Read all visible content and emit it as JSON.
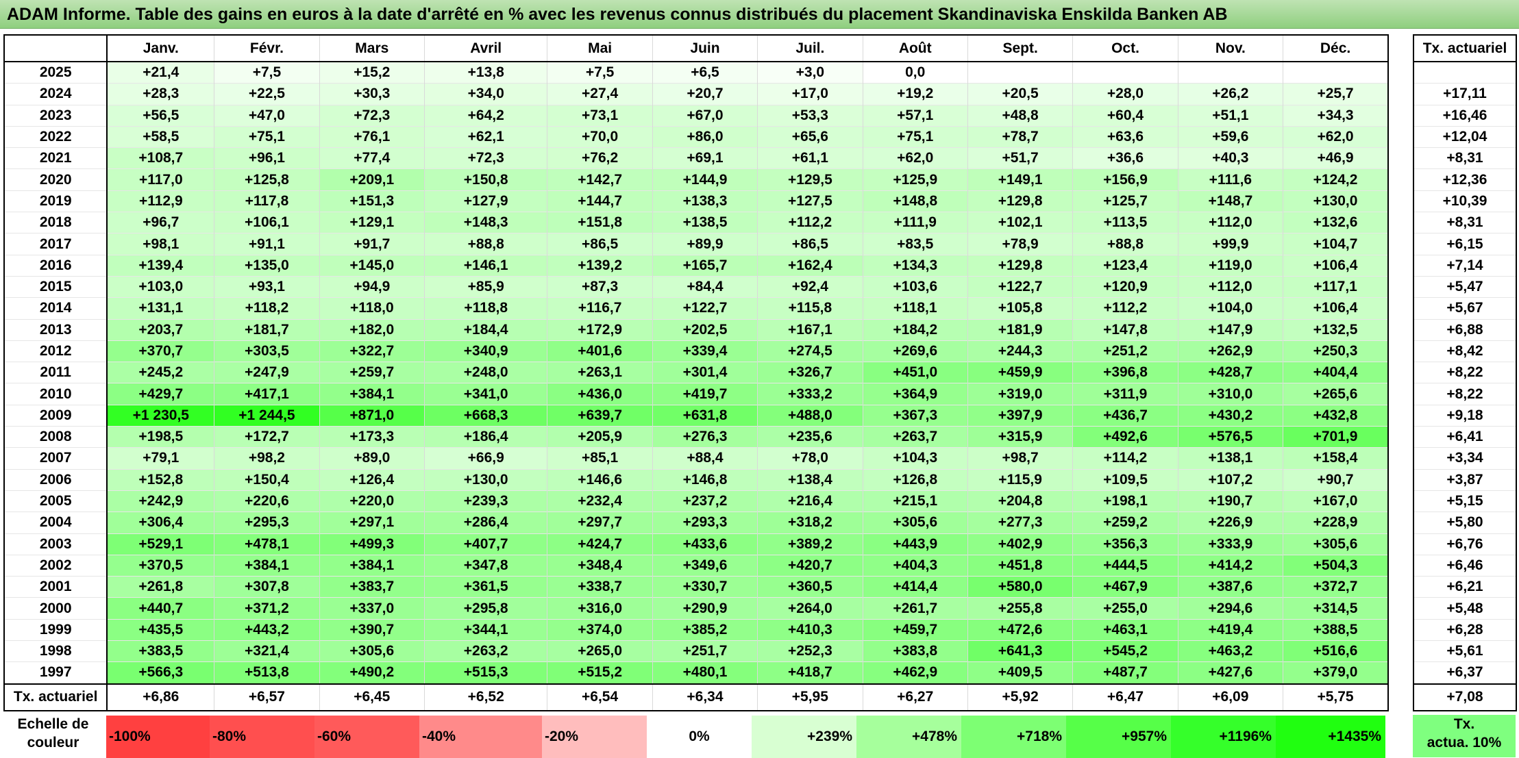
{
  "title": "ADAM Informe. Table des gains en euros à la date d'arrêté en % avec les revenus connus distribués du placement Skandinaviska Enskilda Banken AB",
  "months": [
    "Janv.",
    "Févr.",
    "Mars",
    "Avril",
    "Mai",
    "Juin",
    "Juil.",
    "Août",
    "Sept.",
    "Oct.",
    "Nov.",
    "Déc."
  ],
  "rate_header": "Tx. actuariel",
  "footer_label": "Tx. actuariel",
  "rows": [
    {
      "year": "2025",
      "values": [
        "+21,4",
        "+7,5",
        "+15,2",
        "+13,8",
        "+7,5",
        "+6,5",
        "+3,0",
        "0,0",
        "",
        "",
        "",
        ""
      ],
      "rate": ""
    },
    {
      "year": "2024",
      "values": [
        "+28,3",
        "+22,5",
        "+30,3",
        "+34,0",
        "+27,4",
        "+20,7",
        "+17,0",
        "+19,2",
        "+20,5",
        "+28,0",
        "+26,2",
        "+25,7"
      ],
      "rate": "+17,11"
    },
    {
      "year": "2023",
      "values": [
        "+56,5",
        "+47,0",
        "+72,3",
        "+64,2",
        "+73,1",
        "+67,0",
        "+53,3",
        "+57,1",
        "+48,8",
        "+60,4",
        "+51,1",
        "+34,3"
      ],
      "rate": "+16,46"
    },
    {
      "year": "2022",
      "values": [
        "+58,5",
        "+75,1",
        "+76,1",
        "+62,1",
        "+70,0",
        "+86,0",
        "+65,6",
        "+75,1",
        "+78,7",
        "+63,6",
        "+59,6",
        "+62,0"
      ],
      "rate": "+12,04"
    },
    {
      "year": "2021",
      "values": [
        "+108,7",
        "+96,1",
        "+77,4",
        "+72,3",
        "+76,2",
        "+69,1",
        "+61,1",
        "+62,0",
        "+51,7",
        "+36,6",
        "+40,3",
        "+46,9"
      ],
      "rate": "+8,31"
    },
    {
      "year": "2020",
      "values": [
        "+117,0",
        "+125,8",
        "+209,1",
        "+150,8",
        "+142,7",
        "+144,9",
        "+129,5",
        "+125,9",
        "+149,1",
        "+156,9",
        "+111,6",
        "+124,2"
      ],
      "rate": "+12,36"
    },
    {
      "year": "2019",
      "values": [
        "+112,9",
        "+117,8",
        "+151,3",
        "+127,9",
        "+144,7",
        "+138,3",
        "+127,5",
        "+148,8",
        "+129,8",
        "+125,7",
        "+148,7",
        "+130,0"
      ],
      "rate": "+10,39"
    },
    {
      "year": "2018",
      "values": [
        "+96,7",
        "+106,1",
        "+129,1",
        "+148,3",
        "+151,8",
        "+138,5",
        "+112,2",
        "+111,9",
        "+102,1",
        "+113,5",
        "+112,0",
        "+132,6"
      ],
      "rate": "+8,31"
    },
    {
      "year": "2017",
      "values": [
        "+98,1",
        "+91,1",
        "+91,7",
        "+88,8",
        "+86,5",
        "+89,9",
        "+86,5",
        "+83,5",
        "+78,9",
        "+88,8",
        "+99,9",
        "+104,7"
      ],
      "rate": "+6,15"
    },
    {
      "year": "2016",
      "values": [
        "+139,4",
        "+135,0",
        "+145,0",
        "+146,1",
        "+139,2",
        "+165,7",
        "+162,4",
        "+134,3",
        "+129,8",
        "+123,4",
        "+119,0",
        "+106,4"
      ],
      "rate": "+7,14"
    },
    {
      "year": "2015",
      "values": [
        "+103,0",
        "+93,1",
        "+94,9",
        "+85,9",
        "+87,3",
        "+84,4",
        "+92,4",
        "+103,6",
        "+122,7",
        "+120,9",
        "+112,0",
        "+117,1"
      ],
      "rate": "+5,47"
    },
    {
      "year": "2014",
      "values": [
        "+131,1",
        "+118,2",
        "+118,0",
        "+118,8",
        "+116,7",
        "+122,7",
        "+115,8",
        "+118,1",
        "+105,8",
        "+112,2",
        "+104,0",
        "+106,4"
      ],
      "rate": "+5,67"
    },
    {
      "year": "2013",
      "values": [
        "+203,7",
        "+181,7",
        "+182,0",
        "+184,4",
        "+172,9",
        "+202,5",
        "+167,1",
        "+184,2",
        "+181,9",
        "+147,8",
        "+147,9",
        "+132,5"
      ],
      "rate": "+6,88"
    },
    {
      "year": "2012",
      "values": [
        "+370,7",
        "+303,5",
        "+322,7",
        "+340,9",
        "+401,6",
        "+339,4",
        "+274,5",
        "+269,6",
        "+244,3",
        "+251,2",
        "+262,9",
        "+250,3"
      ],
      "rate": "+8,42"
    },
    {
      "year": "2011",
      "values": [
        "+245,2",
        "+247,9",
        "+259,7",
        "+248,0",
        "+263,1",
        "+301,4",
        "+326,7",
        "+451,0",
        "+459,9",
        "+396,8",
        "+428,7",
        "+404,4"
      ],
      "rate": "+8,22"
    },
    {
      "year": "2010",
      "values": [
        "+429,7",
        "+417,1",
        "+384,1",
        "+341,0",
        "+436,0",
        "+419,7",
        "+333,2",
        "+364,9",
        "+319,0",
        "+311,9",
        "+310,0",
        "+265,6"
      ],
      "rate": "+8,22"
    },
    {
      "year": "2009",
      "values": [
        "+1 230,5",
        "+1 244,5",
        "+871,0",
        "+668,3",
        "+639,7",
        "+631,8",
        "+488,0",
        "+367,3",
        "+397,9",
        "+436,7",
        "+430,2",
        "+432,8"
      ],
      "rate": "+9,18"
    },
    {
      "year": "2008",
      "values": [
        "+198,5",
        "+172,7",
        "+173,3",
        "+186,4",
        "+205,9",
        "+276,3",
        "+235,6",
        "+263,7",
        "+315,9",
        "+492,6",
        "+576,5",
        "+701,9"
      ],
      "rate": "+6,41"
    },
    {
      "year": "2007",
      "values": [
        "+79,1",
        "+98,2",
        "+89,0",
        "+66,9",
        "+85,1",
        "+88,4",
        "+78,0",
        "+104,3",
        "+98,7",
        "+114,2",
        "+138,1",
        "+158,4"
      ],
      "rate": "+3,34"
    },
    {
      "year": "2006",
      "values": [
        "+152,8",
        "+150,4",
        "+126,4",
        "+130,0",
        "+146,6",
        "+146,8",
        "+138,4",
        "+126,8",
        "+115,9",
        "+109,5",
        "+107,2",
        "+90,7"
      ],
      "rate": "+3,87"
    },
    {
      "year": "2005",
      "values": [
        "+242,9",
        "+220,6",
        "+220,0",
        "+239,3",
        "+232,4",
        "+237,2",
        "+216,4",
        "+215,1",
        "+204,8",
        "+198,1",
        "+190,7",
        "+167,0"
      ],
      "rate": "+5,15"
    },
    {
      "year": "2004",
      "values": [
        "+306,4",
        "+295,3",
        "+297,1",
        "+286,4",
        "+297,7",
        "+293,3",
        "+318,2",
        "+305,6",
        "+277,3",
        "+259,2",
        "+226,9",
        "+228,9"
      ],
      "rate": "+5,80"
    },
    {
      "year": "2003",
      "values": [
        "+529,1",
        "+478,1",
        "+499,3",
        "+407,7",
        "+424,7",
        "+433,6",
        "+389,2",
        "+443,9",
        "+402,9",
        "+356,3",
        "+333,9",
        "+305,6"
      ],
      "rate": "+6,76"
    },
    {
      "year": "2002",
      "values": [
        "+370,5",
        "+384,1",
        "+384,1",
        "+347,8",
        "+348,4",
        "+349,6",
        "+420,7",
        "+404,3",
        "+451,8",
        "+444,5",
        "+414,2",
        "+504,3"
      ],
      "rate": "+6,46"
    },
    {
      "year": "2001",
      "values": [
        "+261,8",
        "+307,8",
        "+383,7",
        "+361,5",
        "+338,7",
        "+330,7",
        "+360,5",
        "+414,4",
        "+580,0",
        "+467,9",
        "+387,6",
        "+372,7"
      ],
      "rate": "+6,21"
    },
    {
      "year": "2000",
      "values": [
        "+440,7",
        "+371,2",
        "+337,0",
        "+295,8",
        "+316,0",
        "+290,9",
        "+264,0",
        "+261,7",
        "+255,8",
        "+255,0",
        "+294,6",
        "+314,5"
      ],
      "rate": "+5,48"
    },
    {
      "year": "1999",
      "values": [
        "+435,5",
        "+443,2",
        "+390,7",
        "+344,1",
        "+374,0",
        "+385,2",
        "+410,3",
        "+459,7",
        "+472,6",
        "+463,1",
        "+419,4",
        "+388,5"
      ],
      "rate": "+6,28"
    },
    {
      "year": "1998",
      "values": [
        "+383,5",
        "+321,4",
        "+305,6",
        "+263,2",
        "+265,0",
        "+251,7",
        "+252,3",
        "+383,8",
        "+641,3",
        "+545,2",
        "+463,2",
        "+516,6"
      ],
      "rate": "+5,61"
    },
    {
      "year": "1997",
      "values": [
        "+566,3",
        "+513,8",
        "+490,2",
        "+515,3",
        "+515,2",
        "+480,1",
        "+418,7",
        "+462,9",
        "+409,5",
        "+487,7",
        "+427,6",
        "+379,0"
      ],
      "rate": "+6,37"
    }
  ],
  "footer_values": [
    "+6,86",
    "+6,57",
    "+6,45",
    "+6,52",
    "+6,54",
    "+6,34",
    "+5,95",
    "+6,27",
    "+5,92",
    "+6,47",
    "+6,09",
    "+5,75"
  ],
  "footer_total": "+7,08",
  "scale": {
    "label_line1": "Echelle de",
    "label_line2": "couleur",
    "items": [
      {
        "label": "-100%",
        "color": "#ff4040",
        "align": "left"
      },
      {
        "label": "-80%",
        "color": "#ff4f4f",
        "align": "left"
      },
      {
        "label": "-60%",
        "color": "#ff5a5a",
        "align": "left"
      },
      {
        "label": "-40%",
        "color": "#ff8a8a",
        "align": "left"
      },
      {
        "label": "-20%",
        "color": "#ffbdbd",
        "align": "left"
      },
      {
        "label": "0%",
        "color": "#ffffff",
        "align": "center"
      },
      {
        "label": "+239%",
        "color": "#d8ffd2",
        "align": "right"
      },
      {
        "label": "+478%",
        "color": "#a6ff9c",
        "align": "right"
      },
      {
        "label": "+718%",
        "color": "#7dff73",
        "align": "right"
      },
      {
        "label": "+957%",
        "color": "#56ff48",
        "align": "right"
      },
      {
        "label": "+1196%",
        "color": "#35ff2a",
        "align": "right"
      },
      {
        "label": "+1435%",
        "color": "#20ff10",
        "align": "right"
      }
    ],
    "side_line1": "Tx.",
    "side_line2": "actua. 10%",
    "side_color": "#7fff7f"
  }
}
